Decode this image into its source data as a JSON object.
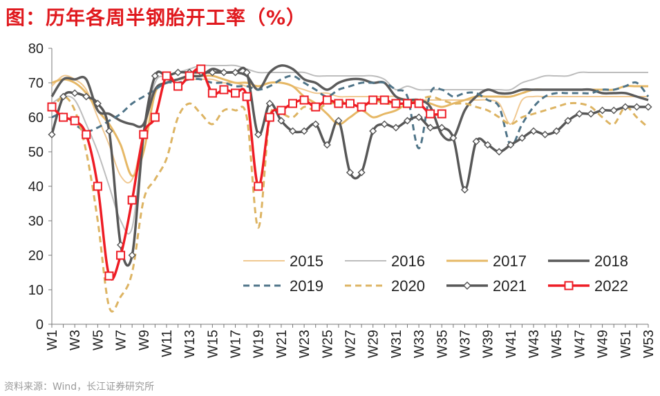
{
  "title": "图：历年各周半钢胎开工率（%）",
  "source": "资料来源：Wind，长江证券研究所",
  "chart_data": {
    "type": "line",
    "title": "历年各周半钢胎开工率（%）",
    "xlabel": "",
    "ylabel": "",
    "ylim": [
      0,
      80
    ],
    "yticks": [
      "0",
      "10",
      "20",
      "30",
      "40",
      "50",
      "60",
      "70",
      "80"
    ],
    "categories": [
      "W1",
      "W2",
      "W3",
      "W4",
      "W5",
      "W6",
      "W7",
      "W8",
      "W9",
      "W10",
      "W11",
      "W12",
      "W13",
      "W14",
      "W15",
      "W16",
      "W17",
      "W18",
      "W19",
      "W20",
      "W21",
      "W22",
      "W23",
      "W24",
      "W25",
      "W26",
      "W27",
      "W28",
      "W29",
      "W30",
      "W31",
      "W32",
      "W33",
      "W34",
      "W35",
      "W36",
      "W37",
      "W38",
      "W39",
      "W40",
      "W41",
      "W42",
      "W43",
      "W44",
      "W45",
      "W46",
      "W47",
      "W48",
      "W49",
      "W50",
      "W51",
      "W52",
      "W53"
    ],
    "xtick_labels": [
      "W1",
      "W3",
      "W5",
      "W7",
      "W9",
      "W11",
      "W13",
      "W15",
      "W17",
      "W19",
      "W21",
      "W23",
      "W25",
      "W27",
      "W29",
      "W31",
      "W33",
      "W35",
      "W37",
      "W39",
      "W41",
      "W43",
      "W45",
      "W47",
      "W49",
      "W51",
      "W53"
    ],
    "grid": false,
    "legend": "bottom-right",
    "series": [
      {
        "name": "2015",
        "color": "#f0c891",
        "dash": "solid",
        "marker": "none",
        "values": [
          69,
          72,
          71,
          68,
          60,
          52,
          43,
          42,
          55,
          68,
          70,
          71,
          71,
          71,
          71,
          70,
          70,
          69,
          69,
          70,
          70,
          69,
          68,
          67,
          67,
          66,
          66,
          66,
          66,
          66,
          66,
          65,
          65,
          65,
          65,
          65,
          65,
          65,
          65,
          64,
          58,
          65,
          66,
          66,
          66,
          66,
          66,
          66,
          66,
          66,
          66,
          66,
          66
        ]
      },
      {
        "name": "2016",
        "color": "#bdbdbd",
        "dash": "solid",
        "marker": "none",
        "values": [
          64,
          66,
          65,
          58,
          50,
          40,
          30,
          28,
          55,
          70,
          72,
          73,
          74,
          75,
          75,
          75,
          75,
          74,
          73,
          73,
          73,
          73,
          73,
          72,
          72,
          72,
          72,
          72,
          72,
          71,
          68,
          69,
          68,
          68,
          68,
          68,
          68,
          68,
          68,
          68,
          68,
          70,
          71,
          72,
          72,
          72,
          73,
          73,
          73,
          73,
          73,
          73,
          73
        ]
      },
      {
        "name": "2017",
        "color": "#e6b866",
        "dash": "solid",
        "marker": "none",
        "values": [
          70,
          71,
          70,
          67,
          62,
          58,
          52,
          43,
          50,
          67,
          70,
          71,
          72,
          72,
          72,
          71,
          70,
          70,
          69,
          70,
          70,
          69,
          66,
          64,
          61,
          58,
          60,
          62,
          60,
          61,
          62,
          64,
          65,
          64,
          63,
          64,
          65,
          66,
          66,
          66,
          66,
          67,
          68,
          68,
          68,
          68,
          68,
          68,
          68,
          68,
          69,
          69,
          69
        ]
      },
      {
        "name": "2018",
        "color": "#5b5b5b",
        "dash": "solid",
        "marker": "none",
        "values": [
          66,
          71,
          71,
          71,
          62,
          61,
          59,
          58,
          58,
          68,
          70,
          71,
          72,
          72,
          74,
          73,
          73,
          72,
          68,
          73,
          75,
          74,
          71,
          70,
          68,
          70,
          71,
          71,
          70,
          70,
          66,
          65,
          65,
          63,
          55,
          54,
          62,
          66,
          68,
          67,
          67,
          68,
          68,
          68,
          68,
          68,
          68,
          68,
          67,
          67,
          67,
          66,
          65
        ]
      },
      {
        "name": "2019",
        "color": "#4f7488",
        "dash": "dashed",
        "marker": "none",
        "values": [
          60,
          61,
          58,
          56,
          57,
          59,
          61,
          64,
          66,
          68,
          70,
          70,
          71,
          71,
          70,
          70,
          69,
          69,
          68,
          69,
          71,
          72,
          70,
          68,
          66,
          68,
          69,
          70,
          70,
          70,
          68,
          66,
          51,
          67,
          68,
          66,
          67,
          67,
          65,
          63,
          52,
          58,
          63,
          66,
          67,
          67,
          67,
          67,
          68,
          68,
          69,
          70,
          66
        ]
      },
      {
        "name": "2020",
        "color": "#ddb463",
        "dash": "dashed",
        "marker": "none",
        "values": [
          62,
          66,
          62,
          50,
          30,
          5,
          8,
          15,
          36,
          42,
          48,
          60,
          64,
          61,
          58,
          62,
          62,
          60,
          28,
          60,
          61,
          60,
          63,
          62,
          64,
          64,
          65,
          63,
          65,
          64,
          64,
          64,
          65,
          66,
          65,
          64,
          64,
          63,
          62,
          60,
          58,
          60,
          61,
          62,
          63,
          64,
          64,
          63,
          60,
          58,
          63,
          60,
          57
        ]
      },
      {
        "name": "2021",
        "color": "#575757",
        "dash": "solid",
        "marker": "diamond",
        "values": [
          55,
          66,
          67,
          66,
          64,
          56,
          23,
          20,
          55,
          72,
          72,
          73,
          73,
          73,
          73,
          73,
          73,
          73,
          55,
          64,
          59,
          56,
          56,
          58,
          52,
          59,
          44,
          44,
          56,
          58,
          57,
          59,
          60,
          57,
          57,
          54,
          39,
          53,
          52,
          50,
          52,
          54,
          56,
          55,
          56,
          59,
          61,
          61,
          62,
          62,
          63,
          63,
          63
        ]
      },
      {
        "name": "2022",
        "color": "#ee1c24",
        "dash": "solid",
        "marker": "square",
        "values": [
          63,
          60,
          59,
          55,
          40,
          14,
          20,
          36,
          55,
          60,
          72,
          69,
          72,
          74,
          67,
          68,
          67,
          66,
          40,
          60,
          62,
          64,
          65,
          63,
          65,
          64,
          64,
          63,
          65,
          65,
          64,
          64,
          64,
          61,
          61,
          null,
          null,
          null,
          null,
          null,
          null,
          null,
          null,
          null,
          null,
          null,
          null,
          null,
          null,
          null,
          null,
          null,
          null
        ]
      }
    ]
  }
}
